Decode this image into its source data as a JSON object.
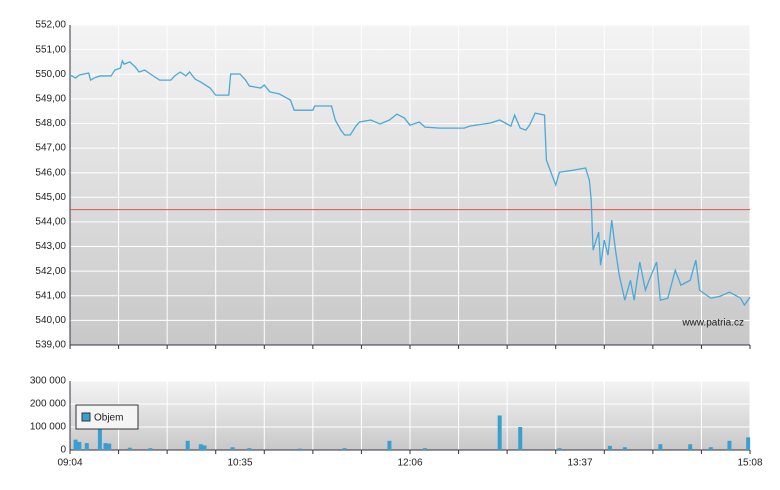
{
  "chart_data": [
    {
      "type": "line",
      "series": [
        {
          "name": null,
          "color": "#4aa8d8",
          "x": [
            0,
            3,
            5,
            10,
            11,
            13,
            16,
            22,
            24,
            27,
            28,
            29,
            32,
            35,
            37,
            40,
            43,
            48,
            54,
            56,
            59,
            62,
            64,
            67,
            70,
            75,
            78,
            85,
            86,
            91,
            94,
            96,
            102,
            104,
            107,
            112,
            118,
            120,
            130,
            131,
            140,
            142,
            145,
            147,
            150,
            153,
            155,
            161,
            166,
            171,
            175,
            179,
            182,
            187,
            190,
            198,
            211,
            214,
            225,
            230,
            236,
            238,
            241,
            244,
            246,
            249,
            254,
            255,
            260,
            262,
            270,
            276,
            278,
            279,
            280,
            283,
            284,
            286,
            288,
            290,
            292,
            294,
            297,
            300,
            302,
            305,
            308,
            310,
            314,
            316,
            320,
            324,
            327,
            332,
            335,
            337,
            343,
            348,
            353,
            359,
            361,
            364
          ],
          "values": [
            549.97,
            549.85,
            549.97,
            550.05,
            549.76,
            549.85,
            549.93,
            549.93,
            550.17,
            550.25,
            550.54,
            550.41,
            550.5,
            550.29,
            550.09,
            550.17,
            550.01,
            549.76,
            549.76,
            549.93,
            550.09,
            549.93,
            550.09,
            549.8,
            549.68,
            549.44,
            549.15,
            549.15,
            550.01,
            550.01,
            549.76,
            549.52,
            549.44,
            549.56,
            549.28,
            549.2,
            548.95,
            548.54,
            548.54,
            548.71,
            548.71,
            548.14,
            547.73,
            547.53,
            547.53,
            547.89,
            548.06,
            548.14,
            547.98,
            548.14,
            548.38,
            548.22,
            547.93,
            548.06,
            547.85,
            547.81,
            547.81,
            547.89,
            548.02,
            548.14,
            547.89,
            548.34,
            547.81,
            547.73,
            547.93,
            548.42,
            548.34,
            546.51,
            545.5,
            546.02,
            546.11,
            546.19,
            545.7,
            544.89,
            542.85,
            543.59,
            542.24,
            543.26,
            542.65,
            544.07,
            542.85,
            541.84,
            540.82,
            541.63,
            540.82,
            542.37,
            541.23,
            541.63,
            542.37,
            540.82,
            540.9,
            542.04,
            541.43,
            541.63,
            542.45,
            541.23,
            540.9,
            540.98,
            541.15,
            540.9,
            540.62,
            540.94
          ]
        }
      ],
      "reference_line": {
        "value": 544.5,
        "color": "#e05050"
      },
      "xlim": [
        0,
        364
      ],
      "xgrid": [
        0,
        26,
        52,
        78,
        104,
        130,
        156,
        182,
        208,
        234,
        260,
        286,
        312,
        338,
        364
      ],
      "ylim": [
        539,
        552
      ],
      "yticks": [
        {
          "value": 539,
          "label": "539,00"
        },
        {
          "value": 540,
          "label": "540,00"
        },
        {
          "value": 541,
          "label": "541,00"
        },
        {
          "value": 542,
          "label": "542,00"
        },
        {
          "value": 543,
          "label": "543,00"
        },
        {
          "value": 544,
          "label": "544,00"
        },
        {
          "value": 545,
          "label": "545,00"
        },
        {
          "value": 546,
          "label": "546,00"
        },
        {
          "value": 547,
          "label": "547,00"
        },
        {
          "value": 548,
          "label": "548,00"
        },
        {
          "value": 549,
          "label": "549,00"
        },
        {
          "value": 550,
          "label": "550,00"
        },
        {
          "value": 551,
          "label": "551,00"
        },
        {
          "value": 552,
          "label": "552,00"
        }
      ],
      "grid": true,
      "watermark": "www.patria.cz"
    },
    {
      "type": "bar",
      "series": [
        {
          "name": "Objem",
          "color": "#3a9fd0",
          "x": [
            3,
            5,
            9,
            16,
            19,
            21,
            32,
            43,
            63,
            70,
            72,
            87,
            96,
            123,
            147,
            171,
            190,
            230,
            241,
            262,
            289,
            297,
            316,
            332,
            343,
            353,
            363
          ],
          "values": [
            45000,
            35000,
            30000,
            180000,
            30000,
            28000,
            10000,
            8000,
            40000,
            25000,
            20000,
            12000,
            8000,
            6000,
            8000,
            40000,
            8000,
            150000,
            100000,
            8000,
            18000,
            12000,
            25000,
            25000,
            12000,
            40000,
            55000
          ]
        }
      ],
      "xlim": [
        0,
        364
      ],
      "xgrid": [
        0,
        26,
        52,
        78,
        104,
        130,
        156,
        182,
        208,
        234,
        260,
        286,
        312,
        338,
        364
      ],
      "xticks": [
        {
          "value": 0,
          "label": "09:04"
        },
        {
          "value": 91,
          "label": "10:35"
        },
        {
          "value": 182,
          "label": "12:06"
        },
        {
          "value": 273,
          "label": "13:37"
        },
        {
          "value": 364,
          "label": "15:08"
        }
      ],
      "ylim": [
        0,
        300000
      ],
      "yticks": [
        0,
        {
          "value": 100000,
          "label": "100 000"
        },
        {
          "value": 200000,
          "label": "200 000"
        },
        {
          "value": 300000,
          "label": "300 000"
        }
      ],
      "grid": true,
      "legend": "upper left"
    }
  ]
}
